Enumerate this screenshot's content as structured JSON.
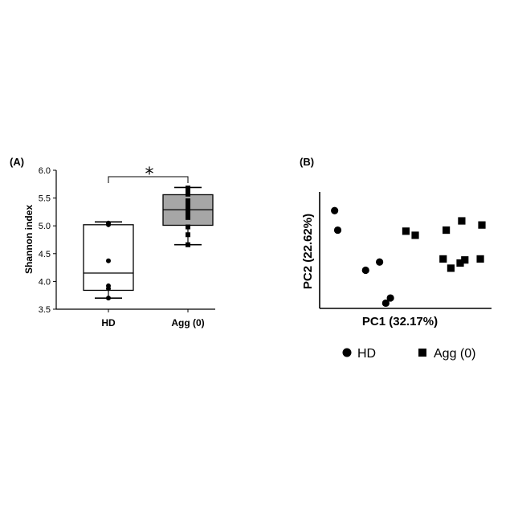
{
  "chart_data": [
    {
      "type": "box",
      "panel_label": "(A)",
      "ylabel": "Shannon index",
      "xlabel": "",
      "ylim": [
        3.5,
        6.0
      ],
      "yticks": [
        "3.5",
        "4.0",
        "4.5",
        "5.0",
        "5.5",
        "6.0"
      ],
      "categories": [
        "HD",
        "Agg (0)"
      ],
      "significance": "*",
      "boxes": [
        {
          "category": "HD",
          "fill": "#ffffff",
          "marker": "circle",
          "q1": 3.84,
          "median": 4.15,
          "q3": 5.02,
          "whisker_low": 3.7,
          "whisker_high": 5.07,
          "points": [
            5.05,
            5.02,
            4.37,
            3.92,
            3.87,
            3.7
          ]
        },
        {
          "category": "Agg (0)",
          "fill": "#a6a6a6",
          "marker": "square",
          "q1": 5.01,
          "median": 5.29,
          "q3": 5.56,
          "whisker_low": 4.66,
          "whisker_high": 5.69,
          "points": [
            5.68,
            5.63,
            5.57,
            5.45,
            5.38,
            5.33,
            5.27,
            5.2,
            5.15,
            4.98,
            4.84,
            4.66
          ]
        }
      ]
    },
    {
      "type": "scatter",
      "panel_label": "(B)",
      "xlabel": "PC1 (32.17%)",
      "ylabel": "PC2 (22.62%)",
      "xlim": [
        0,
        1
      ],
      "ylim": [
        0,
        1
      ],
      "legend_position": "bottom",
      "series": [
        {
          "name": "HD",
          "marker": "circle",
          "x": [
            0.05,
            0.07,
            0.25,
            0.34,
            0.38,
            0.41
          ],
          "y": [
            0.92,
            0.73,
            0.34,
            0.42,
            0.02,
            0.07
          ]
        },
        {
          "name": "Agg (0)",
          "marker": "square",
          "x": [
            0.51,
            0.57,
            0.75,
            0.77,
            0.8,
            0.87,
            0.86,
            0.89,
            1.0,
            0.99
          ],
          "y": [
            0.72,
            0.68,
            0.45,
            0.73,
            0.36,
            0.82,
            0.41,
            0.44,
            0.78,
            0.45
          ]
        }
      ]
    }
  ]
}
